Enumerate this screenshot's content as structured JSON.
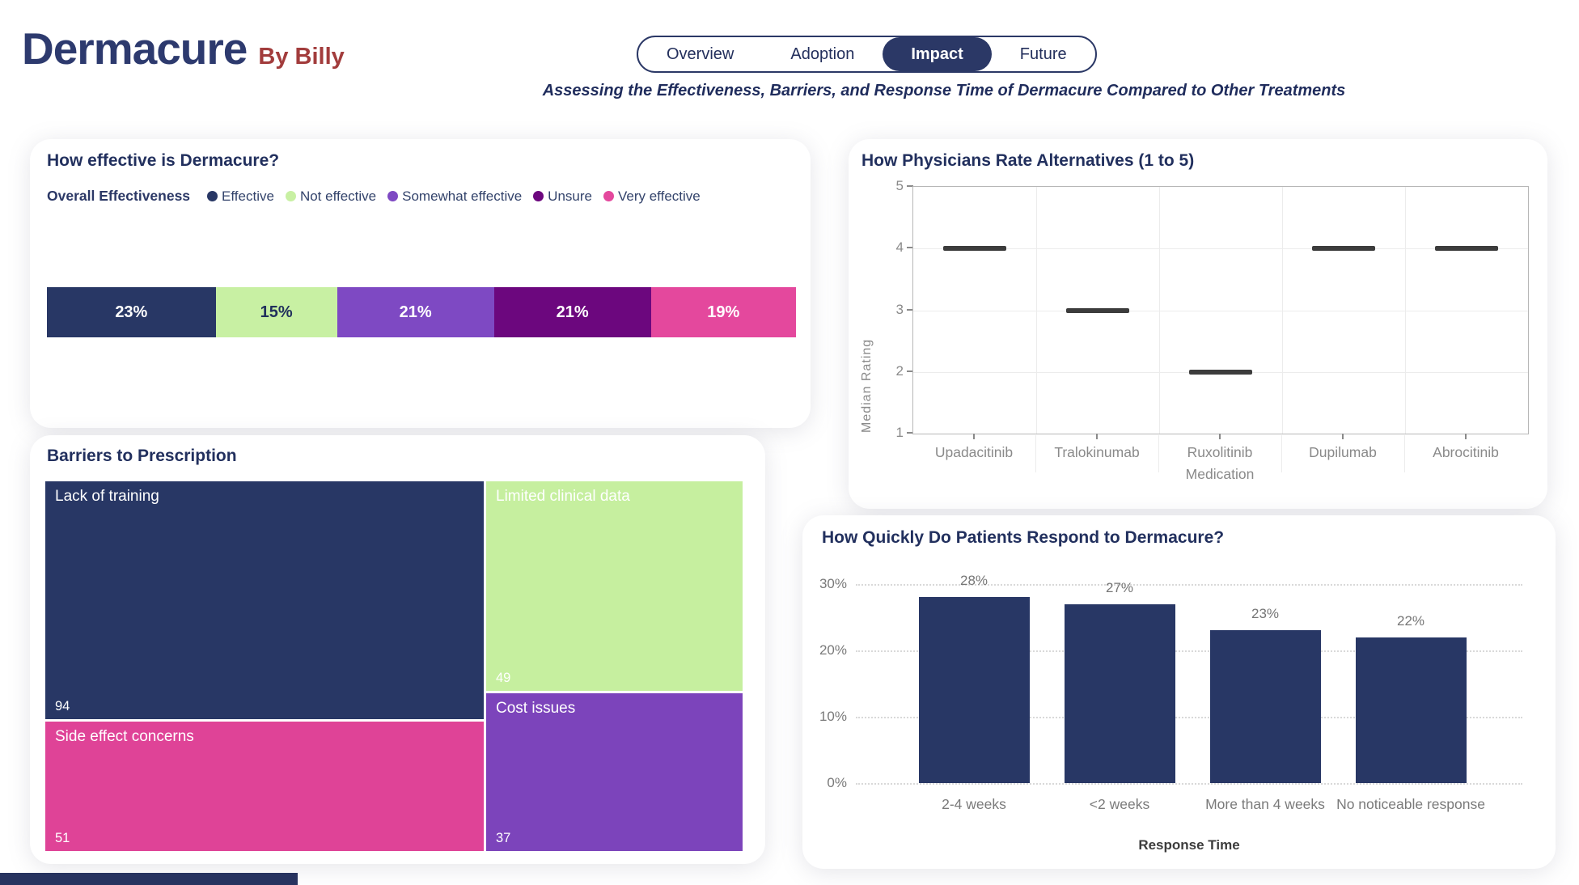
{
  "colors": {
    "navy": "#283765",
    "accent_navy": "#2B3866",
    "green": "#C8F0A3",
    "purple": "#7E49C3",
    "dark_purple": "#6C077E",
    "pink": "#E4489D",
    "maroon": "#A23C3C",
    "axis_gray": "#8A8A8A",
    "grid_gray": "#ECECEC",
    "median_dark": "#3C3C3C"
  },
  "header": {
    "title": "Dermacure",
    "byline": "By Billy",
    "subtitle": "Assessing the Effectiveness, Barriers, and Response Time of Dermacure Compared to Other Treatments",
    "tabs": [
      {
        "label": "Overview",
        "active": false
      },
      {
        "label": "Adoption",
        "active": false
      },
      {
        "label": "Impact",
        "active": true
      },
      {
        "label": "Future",
        "active": false
      }
    ]
  },
  "chart_data": [
    {
      "id": "effectiveness",
      "type": "bar",
      "variant": "stacked-horizontal",
      "title": "How effective is Dermacure?",
      "legend_title": "Overall Effectiveness",
      "legend_position": "top",
      "categories": [
        "Effective",
        "Not effective",
        "Somewhat effective",
        "Unsure",
        "Very effective"
      ],
      "values": [
        23,
        15,
        21,
        21,
        19
      ],
      "unit": "%",
      "segment_colors": [
        "#283765",
        "#C8F0A3",
        "#7E49C3",
        "#6C077E",
        "#E4489D"
      ],
      "segment_label_colors": [
        "#FFFFFF",
        "#21305C",
        "#FFFFFF",
        "#FFFFFF",
        "#FFFFFF"
      ]
    },
    {
      "id": "alternatives",
      "type": "scatter",
      "marker": "median-dash",
      "title": "How Physicians Rate Alternatives (1 to 5)",
      "categories": [
        "Upadacitinib",
        "Tralokinumab",
        "Ruxolitinib",
        "Dupilumab",
        "Abrocitinib"
      ],
      "values": [
        4,
        3,
        2,
        4,
        4
      ],
      "xlabel": "Medication",
      "ylabel": "Median Rating",
      "ylim": [
        1,
        5
      ],
      "yticks": [
        1,
        2,
        3,
        4,
        5
      ],
      "grid": true,
      "marker_color": "#3C3C3C"
    },
    {
      "id": "barriers",
      "type": "treemap",
      "title": "Barriers to Prescription",
      "items": [
        {
          "label": "Lack of training",
          "value": 94,
          "color": "#283765"
        },
        {
          "label": "Side effect concerns",
          "value": 51,
          "color": "#DF4397"
        },
        {
          "label": "Limited clinical data",
          "value": 49,
          "color": "#C6EF9F"
        },
        {
          "label": "Cost issues",
          "value": 37,
          "color": "#7C44BB"
        }
      ],
      "layout": {
        "columns": [
          [
            "Lack of training",
            "Side effect concerns"
          ],
          [
            "Limited clinical data",
            "Cost issues"
          ]
        ],
        "column_weights": [
          542,
          317
        ]
      }
    },
    {
      "id": "response",
      "type": "bar",
      "title": "How Quickly Do Patients Respond to Dermacure?",
      "categories": [
        "2-4 weeks",
        "<2 weeks",
        "More than 4 weeks",
        "No noticeable response"
      ],
      "values": [
        28,
        27,
        23,
        22
      ],
      "unit": "%",
      "xlabel": "Response Time",
      "ylim": [
        0,
        30
      ],
      "yticks": [
        0,
        10,
        20,
        30
      ],
      "ytick_labels": [
        "0%",
        "10%",
        "20%",
        "30%"
      ],
      "grid": "dotted",
      "bar_color": "#283765",
      "value_label_color": "#767676"
    }
  ]
}
